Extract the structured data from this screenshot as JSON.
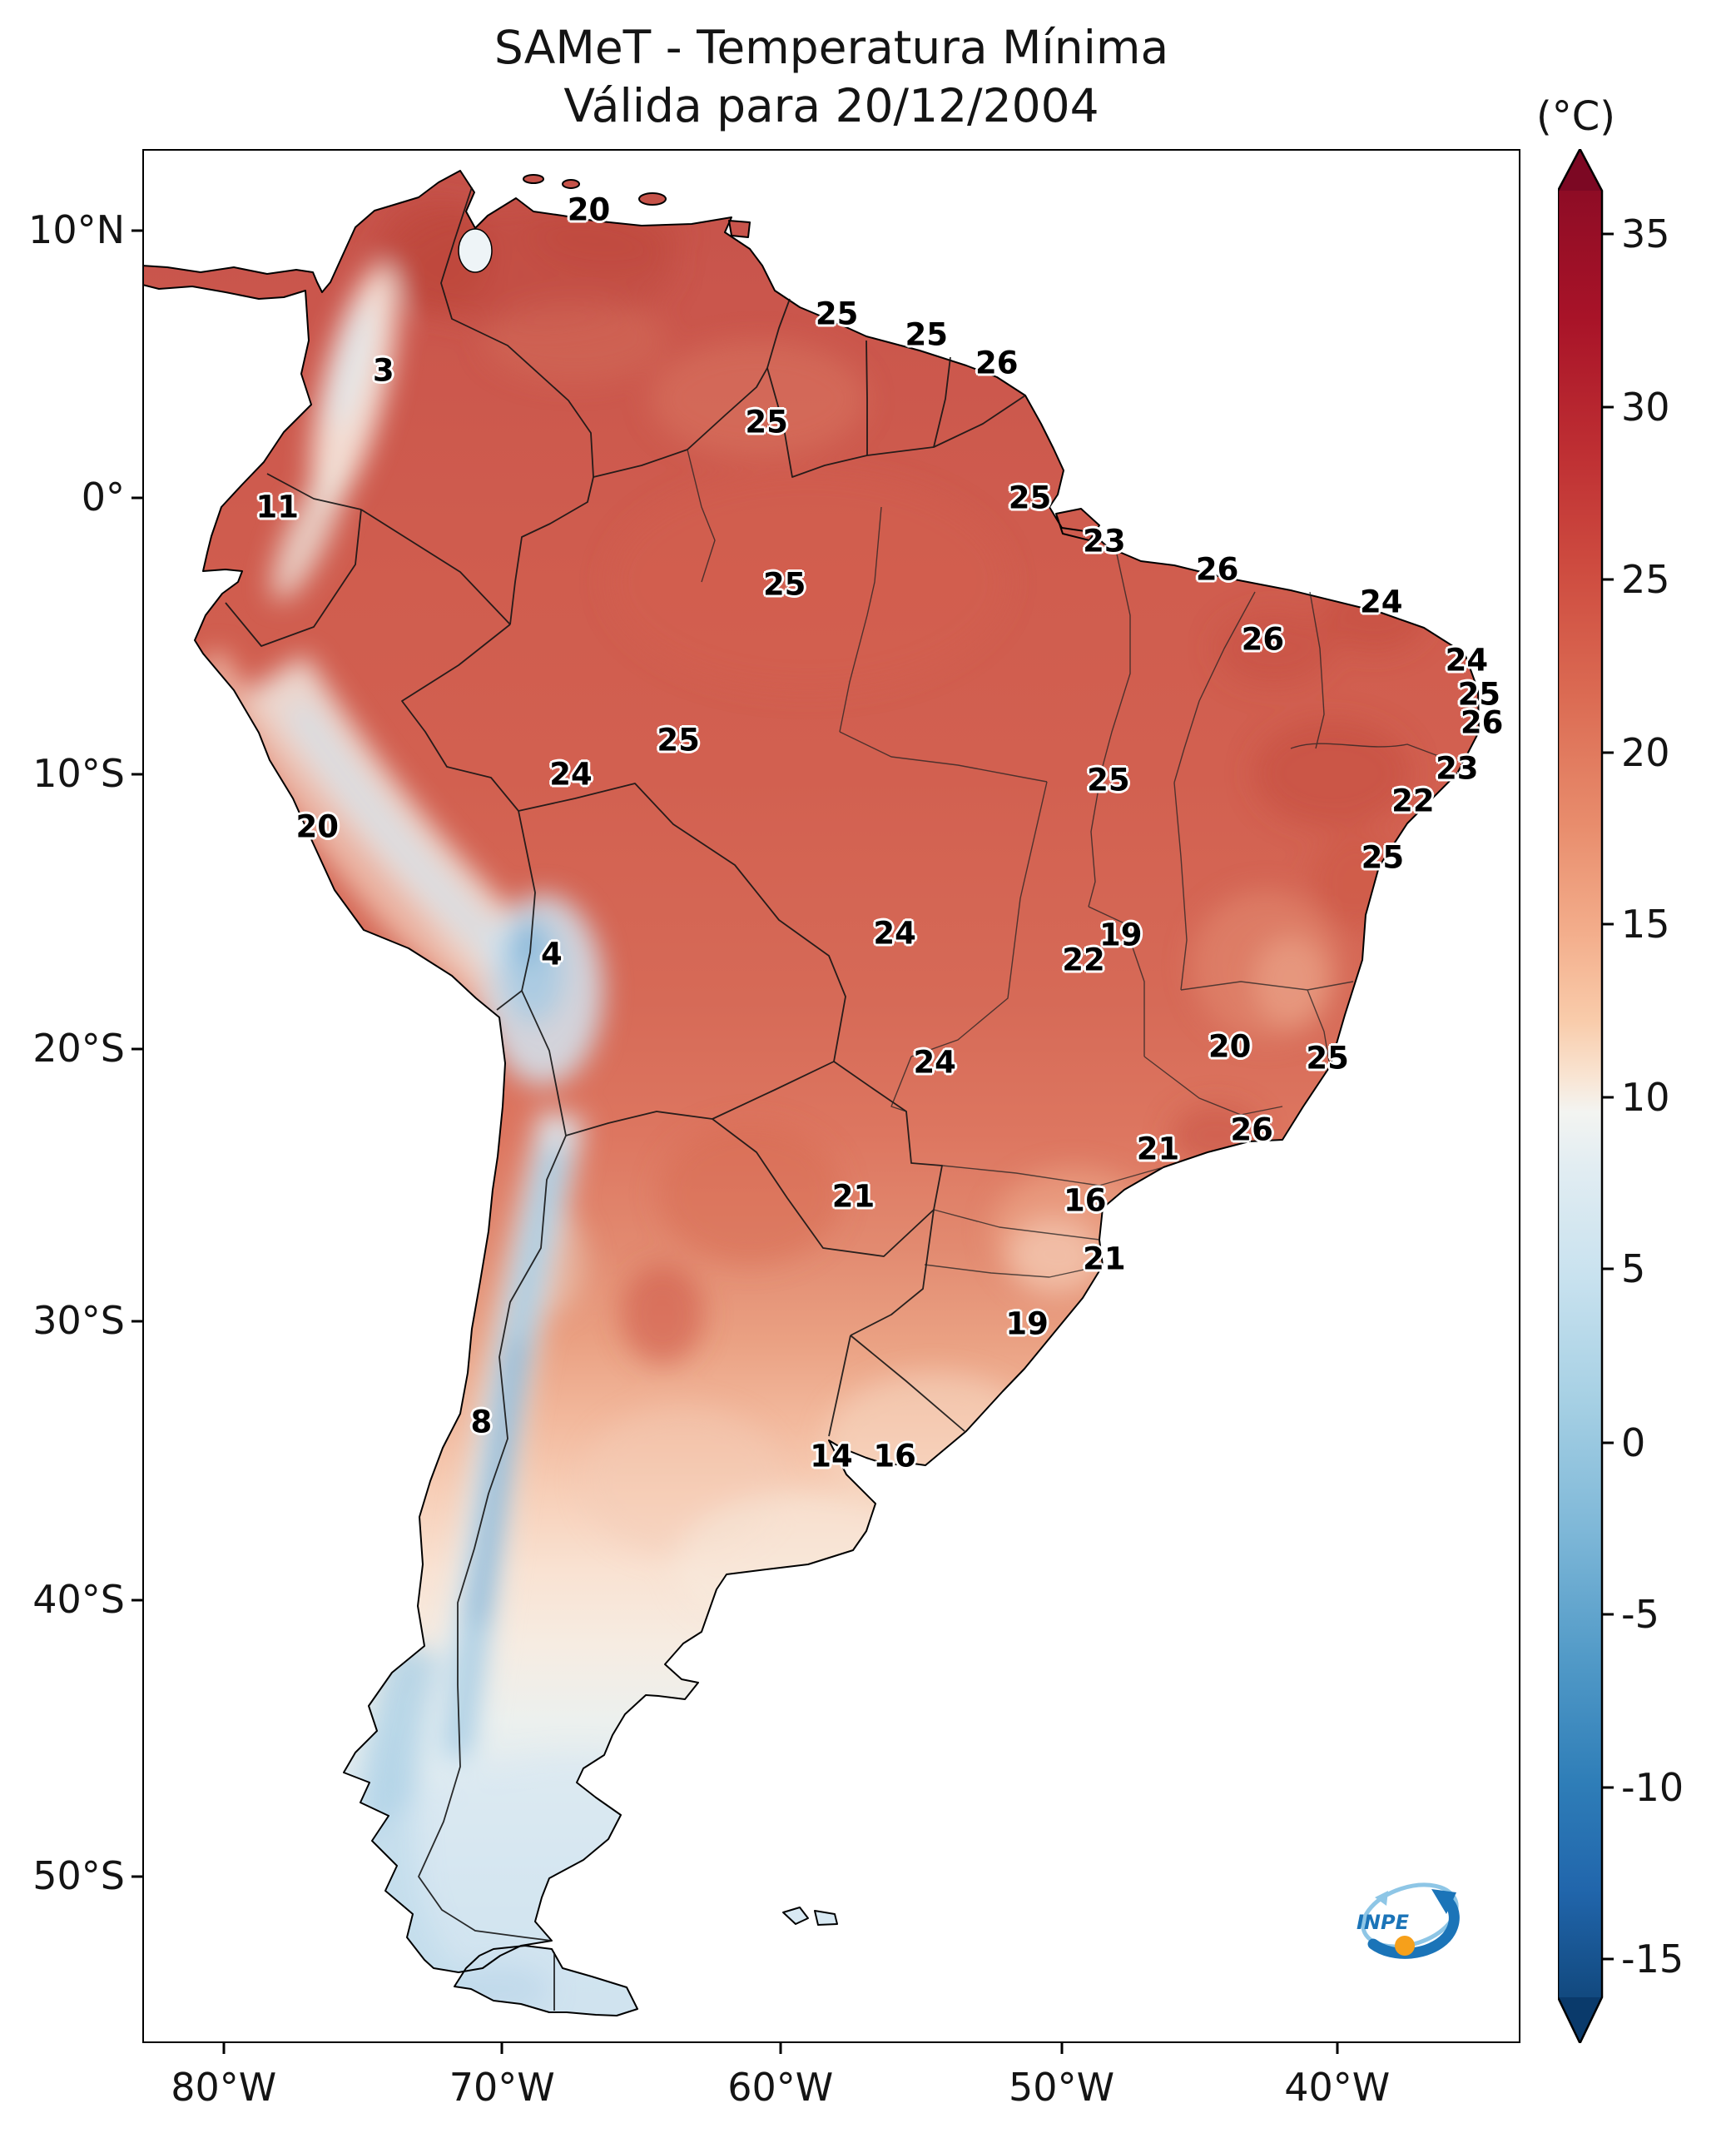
{
  "title": {
    "line1": "SAMeT - Temperatura Mínima",
    "line2": "Válida para 20/12/2004"
  },
  "colorbar": {
    "unit_label": "(°C)",
    "ticks": [
      {
        "label": "35",
        "pct": 2.4
      },
      {
        "label": "30",
        "pct": 12.0
      },
      {
        "label": "25",
        "pct": 21.5
      },
      {
        "label": "20",
        "pct": 31.1
      },
      {
        "label": "15",
        "pct": 40.6
      },
      {
        "label": "10",
        "pct": 50.2
      },
      {
        "label": "5",
        "pct": 59.7
      },
      {
        "label": "0",
        "pct": 69.3
      },
      {
        "label": "-5",
        "pct": 78.8
      },
      {
        "label": "-10",
        "pct": 88.4
      },
      {
        "label": "-15",
        "pct": 97.9
      }
    ],
    "top_color": "#7c0823",
    "bottom_color": "#0a3a6b"
  },
  "axes": {
    "y_ticks": [
      {
        "label": "10°N",
        "pct": 4.3
      },
      {
        "label": "0°",
        "pct": 18.4
      },
      {
        "label": "10°S",
        "pct": 33.0
      },
      {
        "label": "20°S",
        "pct": 47.5
      },
      {
        "label": "30°S",
        "pct": 61.9
      },
      {
        "label": "40°S",
        "pct": 76.6
      },
      {
        "label": "50°S",
        "pct": 91.2
      }
    ],
    "x_ticks": [
      {
        "label": "80°W",
        "pct": 5.9
      },
      {
        "label": "70°W",
        "pct": 26.1
      },
      {
        "label": "60°W",
        "pct": 46.3
      },
      {
        "label": "50°W",
        "pct": 66.7
      },
      {
        "label": "40°W",
        "pct": 86.7
      }
    ]
  },
  "chart_data": {
    "type": "heatmap",
    "title": "SAMeT - Temperatura Mínima",
    "valid_date": "20/12/2004",
    "unit": "°C",
    "colorbar_range": [
      -15,
      35
    ],
    "region": "South America",
    "stations": [
      {
        "value": "20",
        "x_pct": 32.4,
        "y_pct": 3.2,
        "approx_lon": -67.1,
        "approx_lat": 11.0
      },
      {
        "value": "25",
        "x_pct": 50.4,
        "y_pct": 8.7,
        "approx_lon": -58.1,
        "approx_lat": 7.2
      },
      {
        "value": "25",
        "x_pct": 56.9,
        "y_pct": 9.8,
        "approx_lon": -54.9,
        "approx_lat": 6.4
      },
      {
        "value": "26",
        "x_pct": 62.0,
        "y_pct": 11.3,
        "approx_lon": -52.3,
        "approx_lat": 5.4
      },
      {
        "value": "3",
        "x_pct": 17.5,
        "y_pct": 11.7,
        "approx_lon": -74.5,
        "approx_lat": 5.1
      },
      {
        "value": "25",
        "x_pct": 45.3,
        "y_pct": 14.4,
        "approx_lon": -60.6,
        "approx_lat": 3.2
      },
      {
        "value": "11",
        "x_pct": 9.8,
        "y_pct": 18.9,
        "approx_lon": -78.3,
        "approx_lat": 0.1
      },
      {
        "value": "25",
        "x_pct": 64.4,
        "y_pct": 18.4,
        "approx_lon": -51.1,
        "approx_lat": 0.4
      },
      {
        "value": "23",
        "x_pct": 69.8,
        "y_pct": 20.7,
        "approx_lon": -48.4,
        "approx_lat": -1.1
      },
      {
        "value": "25",
        "x_pct": 46.6,
        "y_pct": 23.0,
        "approx_lon": -60.0,
        "approx_lat": -2.7
      },
      {
        "value": "26",
        "x_pct": 78.0,
        "y_pct": 22.2,
        "approx_lon": -44.4,
        "approx_lat": -2.2
      },
      {
        "value": "24",
        "x_pct": 89.9,
        "y_pct": 23.9,
        "approx_lon": -38.4,
        "approx_lat": -3.4
      },
      {
        "value": "26",
        "x_pct": 81.3,
        "y_pct": 25.9,
        "approx_lon": -42.7,
        "approx_lat": -4.7
      },
      {
        "value": "24",
        "x_pct": 96.1,
        "y_pct": 27.0,
        "approx_lon": -35.3,
        "approx_lat": -5.5
      },
      {
        "value": "25",
        "x_pct": 97.0,
        "y_pct": 28.8,
        "approx_lon": -34.9,
        "approx_lat": -6.8
      },
      {
        "value": "26",
        "x_pct": 97.2,
        "y_pct": 30.3,
        "approx_lon": -34.8,
        "approx_lat": -7.8
      },
      {
        "value": "25",
        "x_pct": 38.9,
        "y_pct": 31.2,
        "approx_lon": -63.8,
        "approx_lat": -8.4
      },
      {
        "value": "24",
        "x_pct": 31.1,
        "y_pct": 33.0,
        "approx_lon": -67.7,
        "approx_lat": -9.7
      },
      {
        "value": "23",
        "x_pct": 95.4,
        "y_pct": 32.7,
        "approx_lon": -35.7,
        "approx_lat": -9.5
      },
      {
        "value": "25",
        "x_pct": 70.1,
        "y_pct": 33.3,
        "approx_lon": -48.3,
        "approx_lat": -9.9
      },
      {
        "value": "22",
        "x_pct": 92.2,
        "y_pct": 34.4,
        "approx_lon": -37.3,
        "approx_lat": -10.6
      },
      {
        "value": "20",
        "x_pct": 12.7,
        "y_pct": 35.8,
        "approx_lon": -76.9,
        "approx_lat": -11.6
      },
      {
        "value": "25",
        "x_pct": 90.0,
        "y_pct": 37.4,
        "approx_lon": -38.4,
        "approx_lat": -12.7
      },
      {
        "value": "4",
        "x_pct": 29.7,
        "y_pct": 42.5,
        "approx_lon": -68.4,
        "approx_lat": -16.3
      },
      {
        "value": "24",
        "x_pct": 54.6,
        "y_pct": 41.4,
        "approx_lon": -56.0,
        "approx_lat": -15.5
      },
      {
        "value": "19",
        "x_pct": 71.0,
        "y_pct": 41.5,
        "approx_lon": -47.8,
        "approx_lat": -15.6
      },
      {
        "value": "22",
        "x_pct": 68.3,
        "y_pct": 42.8,
        "approx_lon": -49.2,
        "approx_lat": -16.5
      },
      {
        "value": "24",
        "x_pct": 57.5,
        "y_pct": 48.2,
        "approx_lon": -54.6,
        "approx_lat": -20.2
      },
      {
        "value": "20",
        "x_pct": 78.9,
        "y_pct": 47.4,
        "approx_lon": -43.9,
        "approx_lat": -19.6
      },
      {
        "value": "25",
        "x_pct": 86.0,
        "y_pct": 48.0,
        "approx_lon": -40.4,
        "approx_lat": -20.1
      },
      {
        "value": "21",
        "x_pct": 73.7,
        "y_pct": 52.8,
        "approx_lon": -46.5,
        "approx_lat": -23.4
      },
      {
        "value": "26",
        "x_pct": 80.5,
        "y_pct": 51.8,
        "approx_lon": -43.1,
        "approx_lat": -22.7
      },
      {
        "value": "21",
        "x_pct": 51.6,
        "y_pct": 55.3,
        "approx_lon": -57.5,
        "approx_lat": -25.1
      },
      {
        "value": "16",
        "x_pct": 68.4,
        "y_pct": 55.5,
        "approx_lon": -49.1,
        "approx_lat": -25.3
      },
      {
        "value": "21",
        "x_pct": 69.8,
        "y_pct": 58.6,
        "approx_lon": -48.4,
        "approx_lat": -27.4
      },
      {
        "value": "19",
        "x_pct": 64.2,
        "y_pct": 62.0,
        "approx_lon": -51.2,
        "approx_lat": -29.8
      },
      {
        "value": "8",
        "x_pct": 24.6,
        "y_pct": 67.2,
        "approx_lon": -71.0,
        "approx_lat": -33.4
      },
      {
        "value": "14",
        "x_pct": 50.0,
        "y_pct": 69.0,
        "approx_lon": -58.3,
        "approx_lat": -34.6
      },
      {
        "value": "16",
        "x_pct": 54.6,
        "y_pct": 69.0,
        "approx_lon": -56.0,
        "approx_lat": -34.6
      }
    ]
  },
  "logo": {
    "text": "INPE"
  }
}
